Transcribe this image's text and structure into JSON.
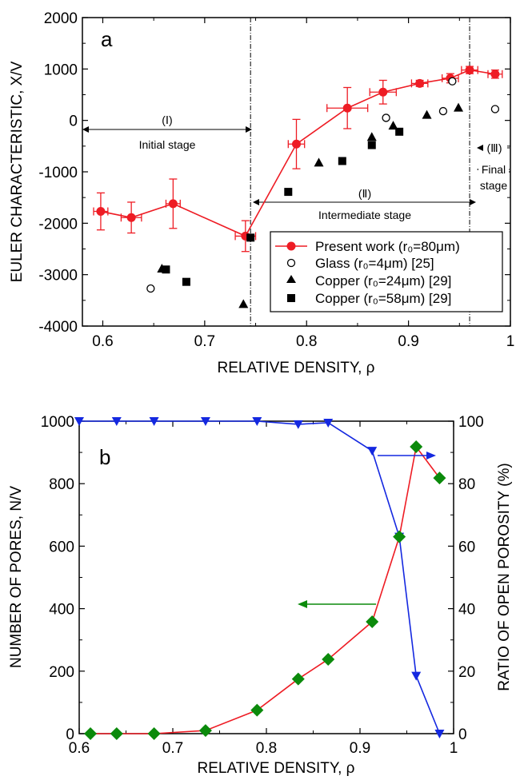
{
  "chart_data": [
    {
      "type": "scatter",
      "panel_label": "a",
      "xlabel": "RELATIVE DENSITY, ρ",
      "ylabel": "EULER CHARACTERISTIC, X/V",
      "xlim": [
        0.58,
        1.0
      ],
      "ylim": [
        -4000,
        2000
      ],
      "x_ticks": [
        "0.6",
        "0.7",
        "0.8",
        "0.9",
        "1"
      ],
      "x_tick_values": [
        0.6,
        0.7,
        0.8,
        0.9,
        1.0
      ],
      "y_ticks": [
        "-4000",
        "-3000",
        "-2000",
        "-1000",
        "0",
        "1000",
        "2000"
      ],
      "y_tick_values": [
        -4000,
        -3000,
        -2000,
        -1000,
        0,
        1000,
        2000
      ],
      "stage_boundaries": [
        0.745,
        0.96
      ],
      "stages": [
        {
          "label": "(Ⅰ)",
          "name": "Initial stage"
        },
        {
          "label": "(Ⅱ)",
          "name": "Intermediate stage"
        },
        {
          "label": "(Ⅲ)",
          "name": "Final stage"
        }
      ],
      "series": [
        {
          "name": "Present work (r₀=80μm)",
          "marker": "circle-filled",
          "color": "#ee1c24",
          "line": true,
          "points": [
            {
              "x": 0.598,
              "y": -1770,
              "yerr": 360,
              "xerr": 0.007
            },
            {
              "x": 0.628,
              "y": -1890,
              "yerr": 300,
              "xerr": 0.01
            },
            {
              "x": 0.669,
              "y": -1620,
              "yerr": 480,
              "xerr": 0.007
            },
            {
              "x": 0.74,
              "y": -2250,
              "yerr": 300,
              "xerr": 0.01
            },
            {
              "x": 0.79,
              "y": -460,
              "yerr": 480,
              "xerr": 0.008
            },
            {
              "x": 0.84,
              "y": 240,
              "yerr": 400,
              "xerr": 0.02
            },
            {
              "x": 0.875,
              "y": 550,
              "yerr": 230,
              "xerr": 0.013
            },
            {
              "x": 0.911,
              "y": 720,
              "yerr": 60,
              "xerr": 0.008
            },
            {
              "x": 0.941,
              "y": 820,
              "yerr": 90,
              "xerr": 0.008
            },
            {
              "x": 0.96,
              "y": 980,
              "yerr": 70,
              "xerr": 0.008
            },
            {
              "x": 0.985,
              "y": 900,
              "yerr": 80,
              "xerr": 0.007
            }
          ]
        },
        {
          "name": "Glass (r₀=4μm) [25]",
          "marker": "circle-open",
          "color": "#000000",
          "points": [
            {
              "x": 0.647,
              "y": -3270
            },
            {
              "x": 0.878,
              "y": 50
            },
            {
              "x": 0.934,
              "y": 180
            },
            {
              "x": 0.943,
              "y": 760
            },
            {
              "x": 0.985,
              "y": 220
            }
          ]
        },
        {
          "name": "Copper (r₀=24μm) [29]",
          "marker": "triangle-filled",
          "color": "#000000",
          "points": [
            {
              "x": 0.658,
              "y": -2880
            },
            {
              "x": 0.738,
              "y": -3570
            },
            {
              "x": 0.812,
              "y": -820
            },
            {
              "x": 0.864,
              "y": -320
            },
            {
              "x": 0.885,
              "y": -100
            },
            {
              "x": 0.918,
              "y": 110
            },
            {
              "x": 0.949,
              "y": 250
            }
          ]
        },
        {
          "name": "Copper (r₀=58μm) [29]",
          "marker": "square-filled",
          "color": "#000000",
          "points": [
            {
              "x": 0.662,
              "y": -2900
            },
            {
              "x": 0.682,
              "y": -3140
            },
            {
              "x": 0.745,
              "y": -2280
            },
            {
              "x": 0.782,
              "y": -1390
            },
            {
              "x": 0.835,
              "y": -790
            },
            {
              "x": 0.864,
              "y": -480
            },
            {
              "x": 0.891,
              "y": -220
            }
          ]
        }
      ]
    },
    {
      "type": "line",
      "panel_label": "b",
      "xlabel": "RELATIVE DENSITY, ρ",
      "ylabel_left": "NUMBER OF PORES, N/V",
      "ylabel_right": "RATIO OF OPEN POROSITY (%)",
      "xlim": [
        0.6,
        1.0
      ],
      "ylim_left": [
        0,
        1000
      ],
      "ylim_right": [
        0,
        100
      ],
      "x_ticks": [
        "0.6",
        "0.7",
        "0.8",
        "0.9",
        "1"
      ],
      "x_tick_values": [
        0.6,
        0.7,
        0.8,
        0.9,
        1.0
      ],
      "y_ticks_left": [
        "0",
        "200",
        "400",
        "600",
        "800",
        "1000"
      ],
      "y_tick_values_left": [
        0,
        200,
        400,
        600,
        800,
        1000
      ],
      "y_ticks_right": [
        "0",
        "20",
        "40",
        "60",
        "80",
        "100"
      ],
      "y_tick_values_right": [
        0,
        20,
        40,
        60,
        80,
        100
      ],
      "series": [
        {
          "axis": "left",
          "marker": "diamond",
          "marker_color": "#0b8a0b",
          "line_color": "#ee1c24",
          "x": [
            0.612,
            0.64,
            0.68,
            0.735,
            0.79,
            0.834,
            0.866,
            0.913,
            0.942,
            0.96,
            0.985
          ],
          "y": [
            0,
            0,
            0,
            10,
            75,
            175,
            238,
            358,
            630,
            918,
            818
          ]
        },
        {
          "axis": "right",
          "marker": "triangle-down",
          "marker_color": "#1428e0",
          "line_color": "#1428e0",
          "x": [
            0.6,
            0.64,
            0.68,
            0.735,
            0.79,
            0.834,
            0.866,
            0.913,
            0.942,
            0.96,
            0.985
          ],
          "y": [
            100,
            100,
            100,
            100,
            100,
            99,
            99.5,
            90.5,
            63,
            18.5,
            0
          ]
        }
      ]
    }
  ]
}
